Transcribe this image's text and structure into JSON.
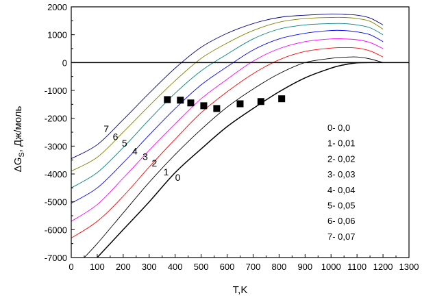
{
  "chart_data": {
    "type": "line",
    "xlabel": "T,K",
    "ylabel_main": "ΔG",
    "ylabel_sub": "S",
    "ylabel_rest": ", Дж/моль",
    "xlim": [
      0,
      1300
    ],
    "ylim": [
      -7000,
      2000
    ],
    "x_ticks": [
      0,
      100,
      200,
      300,
      400,
      500,
      600,
      700,
      800,
      900,
      1000,
      1100,
      1200,
      1300
    ],
    "y_ticks": [
      -7000,
      -6000,
      -5000,
      -4000,
      -3000,
      -2000,
      -1000,
      0,
      1000,
      2000
    ],
    "grid": false,
    "legend_position": "bottom-right",
    "legend": [
      "0- 0,0",
      "1- 0,01",
      "2- 0,02",
      "3- 0,03",
      "4- 0,04",
      "5- 0,05",
      "6- 0,06",
      "7- 0,07"
    ],
    "series": [
      {
        "name": "0",
        "color": "#000000",
        "x": [
          100,
          200,
          300,
          400,
          500,
          600,
          700,
          800,
          900,
          1000,
          1050,
          1100,
          1150,
          1200
        ],
        "y": [
          -7000,
          -6000,
          -5000,
          -3950,
          -3100,
          -2300,
          -1650,
          -1050,
          -550,
          -200,
          -80,
          -10,
          0,
          0
        ]
      },
      {
        "name": "1",
        "color": "#000000",
        "x": [
          50,
          100,
          200,
          300,
          400,
          500,
          600,
          700,
          800,
          900,
          1000,
          1050,
          1100,
          1150,
          1200
        ],
        "y": [
          -7000,
          -6500,
          -5400,
          -4300,
          -3300,
          -2400,
          -1600,
          -950,
          -400,
          0,
          150,
          190,
          200,
          130,
          0
        ]
      },
      {
        "name": "2",
        "color": "#ff0000",
        "x": [
          0,
          100,
          200,
          300,
          400,
          500,
          600,
          700,
          800,
          900,
          1000,
          1050,
          1100,
          1150,
          1200
        ],
        "y": [
          -6300,
          -5700,
          -4800,
          -3750,
          -2750,
          -1800,
          -1050,
          -400,
          100,
          400,
          520,
          540,
          520,
          420,
          200
        ]
      },
      {
        "name": "3",
        "color": "#ff00ff",
        "x": [
          0,
          100,
          200,
          300,
          400,
          500,
          600,
          700,
          800,
          900,
          1000,
          1050,
          1100,
          1150,
          1200
        ],
        "y": [
          -5700,
          -5100,
          -4150,
          -3150,
          -2200,
          -1300,
          -600,
          50,
          500,
          750,
          850,
          850,
          820,
          720,
          500
        ]
      },
      {
        "name": "4",
        "color": "#0000ff",
        "x": [
          0,
          100,
          200,
          300,
          400,
          500,
          600,
          700,
          800,
          900,
          1000,
          1050,
          1100,
          1150,
          1200
        ],
        "y": [
          -5050,
          -4500,
          -3600,
          -2600,
          -1650,
          -800,
          -150,
          450,
          850,
          1050,
          1150,
          1150,
          1100,
          1000,
          750
        ]
      },
      {
        "name": "5",
        "color": "#008080",
        "x": [
          0,
          100,
          200,
          300,
          400,
          500,
          600,
          700,
          800,
          900,
          1000,
          1050,
          1100,
          1150,
          1200
        ],
        "y": [
          -4500,
          -3950,
          -3050,
          -2050,
          -1100,
          -300,
          300,
          850,
          1200,
          1350,
          1400,
          1400,
          1350,
          1250,
          1000
        ]
      },
      {
        "name": "6",
        "color": "#808000",
        "x": [
          0,
          100,
          200,
          300,
          400,
          500,
          600,
          700,
          800,
          900,
          1000,
          1050,
          1100,
          1150,
          1200
        ],
        "y": [
          -3900,
          -3400,
          -2500,
          -1550,
          -650,
          150,
          700,
          1150,
          1450,
          1580,
          1620,
          1620,
          1580,
          1480,
          1200
        ]
      },
      {
        "name": "7",
        "color": "#000080",
        "x": [
          0,
          100,
          200,
          300,
          400,
          500,
          600,
          700,
          800,
          900,
          1000,
          1050,
          1100,
          1150,
          1200
        ],
        "y": [
          -3450,
          -2950,
          -2050,
          -1100,
          -200,
          550,
          1050,
          1400,
          1620,
          1700,
          1740,
          1730,
          1700,
          1600,
          1350
        ]
      }
    ],
    "markers": {
      "type": "square",
      "x": [
        370,
        420,
        460,
        510,
        560,
        650,
        730,
        810
      ],
      "y": [
        -1330,
        -1350,
        -1450,
        -1550,
        -1650,
        -1480,
        -1400,
        -1300
      ]
    },
    "curve_labels": [
      {
        "text": "7",
        "x": 135,
        "y": -2500
      },
      {
        "text": "6",
        "x": 170,
        "y": -2780
      },
      {
        "text": "5",
        "x": 205,
        "y": -3020
      },
      {
        "text": "4",
        "x": 245,
        "y": -3300
      },
      {
        "text": "3",
        "x": 285,
        "y": -3500
      },
      {
        "text": "2",
        "x": 320,
        "y": -3730
      },
      {
        "text": "1",
        "x": 365,
        "y": -4050
      },
      {
        "text": "0",
        "x": 410,
        "y": -4250
      }
    ]
  }
}
